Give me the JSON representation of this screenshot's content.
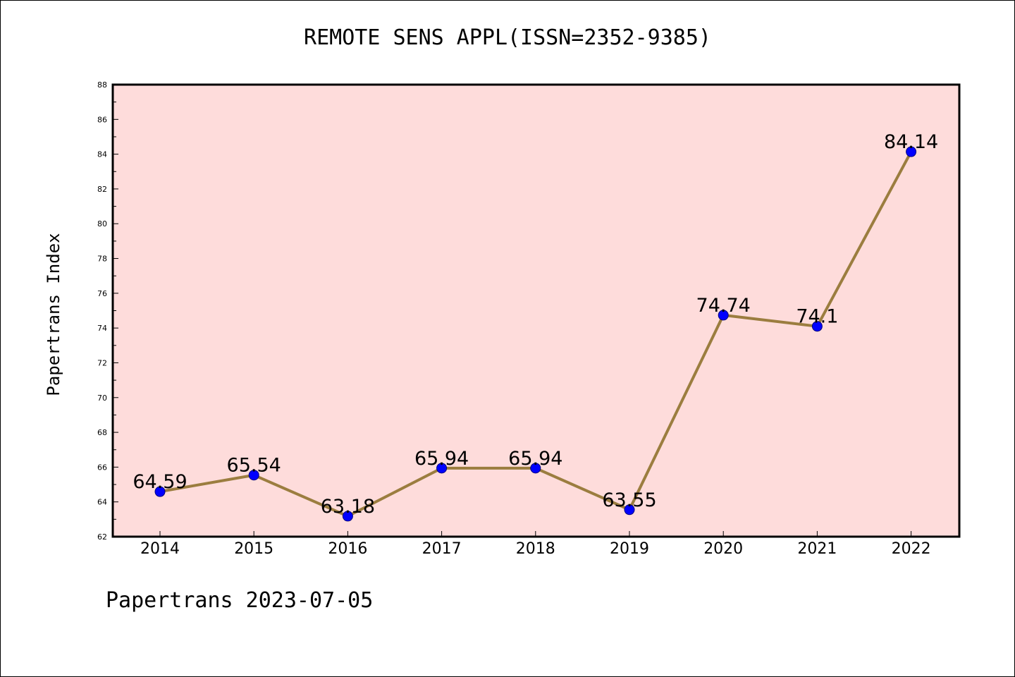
{
  "header": {
    "title": "REMOTE SENS APPL(ISSN=2352-9385)"
  },
  "footer": {
    "text": "Papertrans 2023-07-05"
  },
  "chart_data": {
    "type": "line",
    "title": "REMOTE SENS APPL(ISSN=2352-9385)",
    "xlabel": "",
    "ylabel": "Papertrans Index",
    "categories": [
      "2014",
      "2015",
      "2016",
      "2017",
      "2018",
      "2019",
      "2020",
      "2021",
      "2022"
    ],
    "values": [
      64.59,
      65.54,
      63.18,
      65.94,
      65.94,
      63.55,
      74.74,
      74.1,
      84.14
    ],
    "value_labels": [
      "64.59",
      "65.54",
      "63.18",
      "65.94",
      "65.94",
      "63.55",
      "74.74",
      "74.1",
      "84.14"
    ],
    "ylim": [
      62,
      88
    ],
    "yticks": [
      62,
      64,
      66,
      68,
      70,
      72,
      74,
      76,
      78,
      80,
      82,
      84,
      86,
      88
    ],
    "grid": false,
    "legend": "none",
    "colors": {
      "plot_background": "#fedcdb",
      "line": "#9b7d3f",
      "marker": "#0000ff",
      "marker_edge": "#000080"
    }
  }
}
